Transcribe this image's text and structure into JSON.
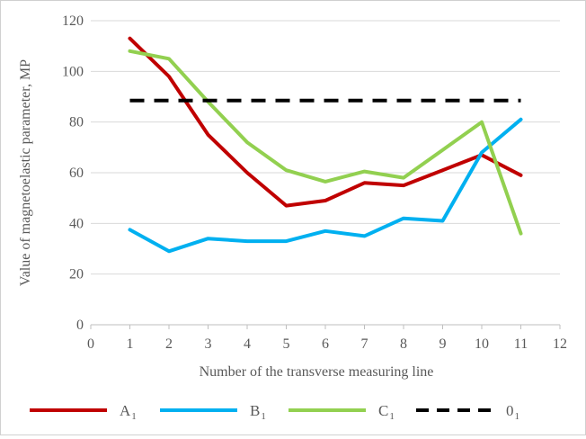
{
  "chart_data": {
    "type": "line",
    "title": "",
    "xlabel": "Number of the transverse measuring line",
    "ylabel": "Value of magnetoelastic parameter, MP",
    "xlim": [
      0,
      12
    ],
    "ylim": [
      0,
      120
    ],
    "x_ticks": [
      0,
      1,
      2,
      3,
      4,
      5,
      6,
      7,
      8,
      9,
      10,
      11,
      12
    ],
    "y_ticks": [
      0,
      20,
      40,
      60,
      80,
      100,
      120
    ],
    "grid": "horizontal",
    "legend_position": "bottom",
    "x": [
      1,
      2,
      3,
      4,
      5,
      6,
      7,
      8,
      9,
      10,
      11
    ],
    "series": [
      {
        "name": "A",
        "subscript": "1",
        "color": "#c00000",
        "style": "solid",
        "values": [
          113,
          98,
          75,
          60,
          47,
          49,
          56,
          55,
          61,
          67,
          59
        ]
      },
      {
        "name": "B",
        "subscript": "1",
        "color": "#00b0f0",
        "style": "solid",
        "values": [
          37.5,
          29,
          34,
          33,
          33,
          37,
          35,
          42,
          41,
          68,
          81
        ]
      },
      {
        "name": "C",
        "subscript": "1",
        "color": "#92d050",
        "style": "solid",
        "values": [
          108,
          105,
          88,
          72,
          61,
          56.5,
          60.5,
          58,
          69,
          80,
          36
        ]
      },
      {
        "name": "0",
        "subscript": "1",
        "color": "#000000",
        "style": "dashed",
        "values": [
          88.5,
          88.5,
          88.5,
          88.5,
          88.5,
          88.5,
          88.5,
          88.5,
          88.5,
          88.5,
          88.5
        ]
      }
    ]
  }
}
